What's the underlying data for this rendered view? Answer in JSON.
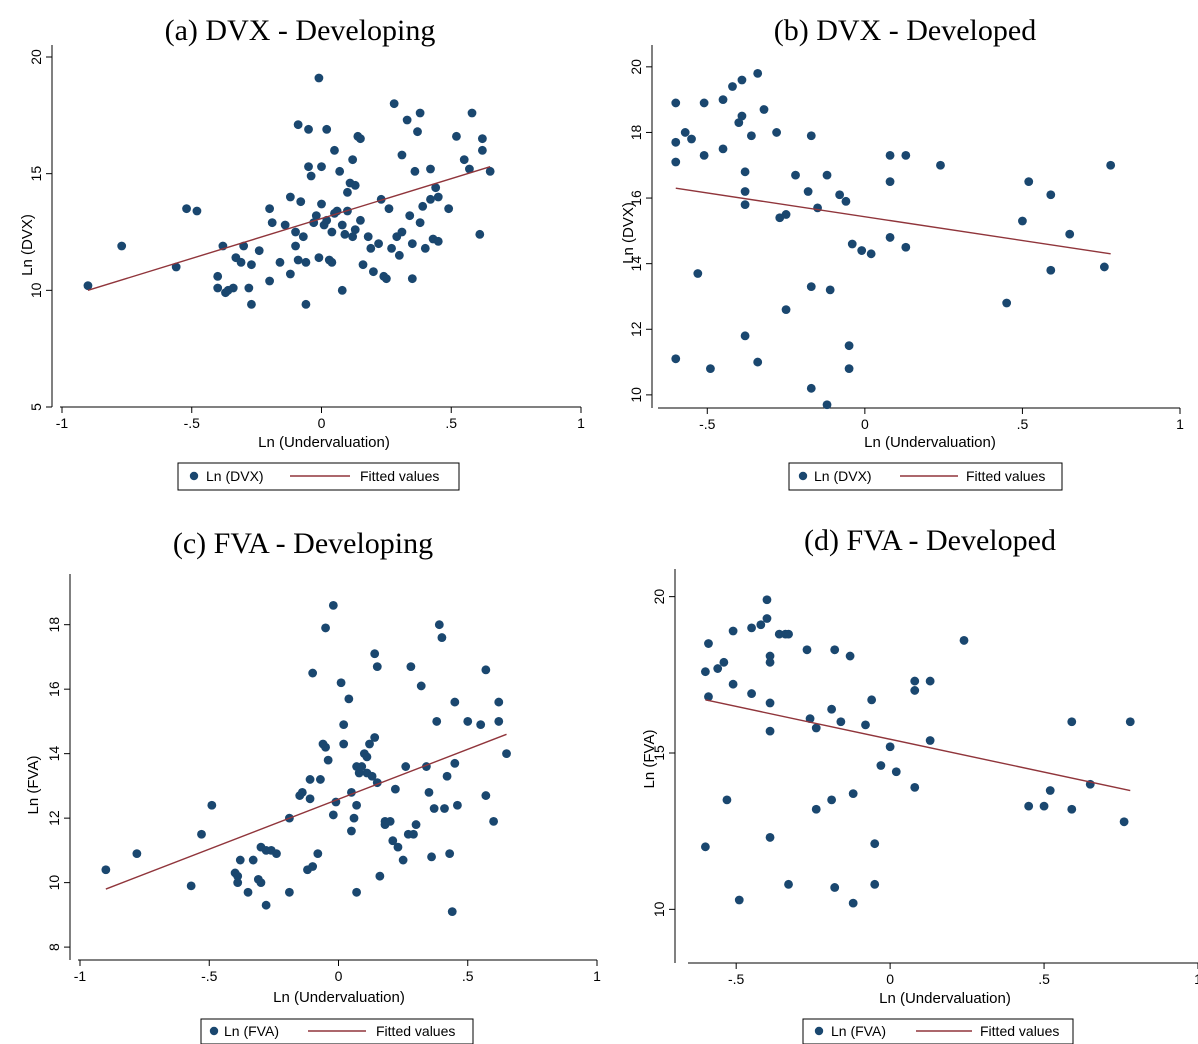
{
  "colors": {
    "marker": "#1a476f",
    "fit": "#90353b",
    "axis": "#000000"
  },
  "chart_data": [
    {
      "type": "scatter",
      "title": "(a) DVX - Developing",
      "xlabel": "Ln (Undervaluation)",
      "ylabel": "Ln (DVX)",
      "xticks": [
        "-1",
        "-.5",
        "0",
        ".5",
        "1"
      ],
      "yticks": [
        "5",
        "10",
        "15",
        "20"
      ],
      "xlim": [
        -1,
        1
      ],
      "ylim": [
        5,
        20
      ],
      "legend": [
        "Ln (DVX)",
        "Fitted values"
      ],
      "fit": [
        [
          -0.9,
          10.0
        ],
        [
          0.65,
          15.3
        ]
      ],
      "points": [
        [
          -0.9,
          10.2
        ],
        [
          -0.77,
          11.9
        ],
        [
          -0.56,
          11.0
        ],
        [
          -0.52,
          13.5
        ],
        [
          -0.48,
          13.4
        ],
        [
          -0.4,
          10.6
        ],
        [
          -0.4,
          10.1
        ],
        [
          -0.38,
          11.9
        ],
        [
          -0.37,
          9.9
        ],
        [
          -0.36,
          10.0
        ],
        [
          -0.34,
          10.1
        ],
        [
          -0.33,
          11.4
        ],
        [
          -0.31,
          11.2
        ],
        [
          -0.3,
          11.9
        ],
        [
          -0.28,
          10.1
        ],
        [
          -0.27,
          11.1
        ],
        [
          -0.27,
          9.4
        ],
        [
          -0.24,
          11.7
        ],
        [
          -0.2,
          10.4
        ],
        [
          -0.2,
          13.5
        ],
        [
          -0.19,
          12.9
        ],
        [
          -0.16,
          11.2
        ],
        [
          -0.14,
          12.8
        ],
        [
          -0.12,
          10.7
        ],
        [
          -0.12,
          14.0
        ],
        [
          -0.1,
          11.9
        ],
        [
          -0.1,
          12.5
        ],
        [
          -0.09,
          11.3
        ],
        [
          -0.09,
          17.1
        ],
        [
          -0.08,
          13.8
        ],
        [
          -0.07,
          12.3
        ],
        [
          -0.06,
          11.2
        ],
        [
          -0.06,
          9.4
        ],
        [
          -0.05,
          16.9
        ],
        [
          -0.05,
          15.3
        ],
        [
          -0.04,
          14.9
        ],
        [
          -0.03,
          12.9
        ],
        [
          -0.02,
          13.2
        ],
        [
          -0.01,
          19.1
        ],
        [
          -0.01,
          11.4
        ],
        [
          0.0,
          15.3
        ],
        [
          0.0,
          13.7
        ],
        [
          0.01,
          12.8
        ],
        [
          0.02,
          13.0
        ],
        [
          0.02,
          16.9
        ],
        [
          0.03,
          11.3
        ],
        [
          0.04,
          11.2
        ],
        [
          0.04,
          12.5
        ],
        [
          0.05,
          16.0
        ],
        [
          0.05,
          13.3
        ],
        [
          0.06,
          13.4
        ],
        [
          0.07,
          15.1
        ],
        [
          0.08,
          12.8
        ],
        [
          0.08,
          10.0
        ],
        [
          0.09,
          12.4
        ],
        [
          0.1,
          14.2
        ],
        [
          0.1,
          13.4
        ],
        [
          0.11,
          14.6
        ],
        [
          0.12,
          12.3
        ],
        [
          0.12,
          15.6
        ],
        [
          0.13,
          12.6
        ],
        [
          0.13,
          14.5
        ],
        [
          0.14,
          16.6
        ],
        [
          0.15,
          16.5
        ],
        [
          0.15,
          13.0
        ],
        [
          0.16,
          11.1
        ],
        [
          0.18,
          12.3
        ],
        [
          0.19,
          11.8
        ],
        [
          0.2,
          10.8
        ],
        [
          0.22,
          12.0
        ],
        [
          0.23,
          13.9
        ],
        [
          0.24,
          10.6
        ],
        [
          0.25,
          10.5
        ],
        [
          0.26,
          13.5
        ],
        [
          0.27,
          11.8
        ],
        [
          0.28,
          18.0
        ],
        [
          0.29,
          12.3
        ],
        [
          0.3,
          11.5
        ],
        [
          0.31,
          12.5
        ],
        [
          0.31,
          15.8
        ],
        [
          0.33,
          17.3
        ],
        [
          0.34,
          13.2
        ],
        [
          0.35,
          10.5
        ],
        [
          0.35,
          12.0
        ],
        [
          0.36,
          15.1
        ],
        [
          0.37,
          16.8
        ],
        [
          0.38,
          17.6
        ],
        [
          0.38,
          12.9
        ],
        [
          0.39,
          13.6
        ],
        [
          0.4,
          11.8
        ],
        [
          0.42,
          13.9
        ],
        [
          0.42,
          15.2
        ],
        [
          0.43,
          12.2
        ],
        [
          0.44,
          14.4
        ],
        [
          0.45,
          14.0
        ],
        [
          0.45,
          12.1
        ],
        [
          0.49,
          13.5
        ],
        [
          0.52,
          16.6
        ],
        [
          0.55,
          15.6
        ],
        [
          0.57,
          15.2
        ],
        [
          0.58,
          17.6
        ],
        [
          0.61,
          12.4
        ],
        [
          0.62,
          16.5
        ],
        [
          0.62,
          16.0
        ],
        [
          0.65,
          15.1
        ]
      ]
    },
    {
      "type": "scatter",
      "title": "(b) DVX - Developed",
      "xlabel": "Ln (Undervaluation)",
      "ylabel": "Ln (DVX)",
      "xticks": [
        "-.5",
        "0",
        ".5",
        "1"
      ],
      "yticks": [
        "10",
        "12",
        "14",
        "16",
        "18",
        "20"
      ],
      "xlim": [
        -0.65,
        1
      ],
      "ylim": [
        9.6,
        20.3
      ],
      "legend": [
        "Ln (DVX)",
        "Fitted values"
      ],
      "fit": [
        [
          -0.6,
          16.3
        ],
        [
          0.78,
          14.3
        ]
      ],
      "points": [
        [
          -0.6,
          17.1
        ],
        [
          -0.6,
          18.9
        ],
        [
          -0.6,
          17.7
        ],
        [
          -0.6,
          11.1
        ],
        [
          -0.57,
          18.0
        ],
        [
          -0.55,
          17.8
        ],
        [
          -0.53,
          13.7
        ],
        [
          -0.51,
          17.3
        ],
        [
          -0.51,
          18.9
        ],
        [
          -0.49,
          10.8
        ],
        [
          -0.45,
          19.0
        ],
        [
          -0.45,
          17.5
        ],
        [
          -0.42,
          19.4
        ],
        [
          -0.4,
          18.3
        ],
        [
          -0.39,
          19.6
        ],
        [
          -0.39,
          18.5
        ],
        [
          -0.38,
          16.8
        ],
        [
          -0.38,
          16.2
        ],
        [
          -0.38,
          15.8
        ],
        [
          -0.38,
          11.8
        ],
        [
          -0.36,
          17.9
        ],
        [
          -0.34,
          19.8
        ],
        [
          -0.34,
          11.0
        ],
        [
          -0.32,
          18.7
        ],
        [
          -0.28,
          18.0
        ],
        [
          -0.27,
          15.4
        ],
        [
          -0.25,
          15.5
        ],
        [
          -0.25,
          12.6
        ],
        [
          -0.22,
          16.7
        ],
        [
          -0.18,
          16.2
        ],
        [
          -0.17,
          17.9
        ],
        [
          -0.17,
          13.3
        ],
        [
          -0.17,
          10.2
        ],
        [
          -0.15,
          15.7
        ],
        [
          -0.12,
          16.7
        ],
        [
          -0.12,
          9.7
        ],
        [
          -0.11,
          13.2
        ],
        [
          -0.08,
          16.1
        ],
        [
          -0.06,
          15.9
        ],
        [
          -0.05,
          11.5
        ],
        [
          -0.05,
          10.8
        ],
        [
          -0.04,
          14.6
        ],
        [
          -0.01,
          14.4
        ],
        [
          0.02,
          14.3
        ],
        [
          0.08,
          17.3
        ],
        [
          0.08,
          16.5
        ],
        [
          0.08,
          14.8
        ],
        [
          0.13,
          17.3
        ],
        [
          0.13,
          14.5
        ],
        [
          0.24,
          17.0
        ],
        [
          0.45,
          12.8
        ],
        [
          0.5,
          15.3
        ],
        [
          0.52,
          16.5
        ],
        [
          0.59,
          16.1
        ],
        [
          0.59,
          13.8
        ],
        [
          0.65,
          14.9
        ],
        [
          0.76,
          13.9
        ],
        [
          0.78,
          17.0
        ]
      ]
    },
    {
      "type": "scatter",
      "title": "(c) FVA - Developing",
      "xlabel": "Ln (Undervaluation)",
      "ylabel": "Ln (FVA)",
      "xticks": [
        "-1",
        "-.5",
        "0",
        ".5",
        "1"
      ],
      "yticks": [
        "8",
        "10",
        "12",
        "14",
        "16",
        "18"
      ],
      "xlim": [
        -1,
        1
      ],
      "ylim": [
        7.6,
        19.2
      ],
      "legend": [
        "Ln (FVA)",
        "Fitted values"
      ],
      "fit": [
        [
          -0.9,
          9.8
        ],
        [
          0.65,
          14.6
        ]
      ],
      "points": [
        [
          -0.9,
          10.4
        ],
        [
          -0.78,
          10.9
        ],
        [
          -0.57,
          9.9
        ],
        [
          -0.53,
          11.5
        ],
        [
          -0.49,
          12.4
        ],
        [
          -0.4,
          10.3
        ],
        [
          -0.39,
          10.2
        ],
        [
          -0.39,
          10.0
        ],
        [
          -0.38,
          10.7
        ],
        [
          -0.35,
          9.7
        ],
        [
          -0.33,
          10.7
        ],
        [
          -0.31,
          10.1
        ],
        [
          -0.3,
          11.1
        ],
        [
          -0.3,
          10.0
        ],
        [
          -0.28,
          9.3
        ],
        [
          -0.28,
          11.0
        ],
        [
          -0.26,
          11.0
        ],
        [
          -0.24,
          10.9
        ],
        [
          -0.19,
          9.7
        ],
        [
          -0.19,
          12.0
        ],
        [
          -0.15,
          12.7
        ],
        [
          -0.14,
          12.8
        ],
        [
          -0.12,
          10.4
        ],
        [
          -0.11,
          12.6
        ],
        [
          -0.11,
          13.2
        ],
        [
          -0.1,
          10.5
        ],
        [
          -0.1,
          16.5
        ],
        [
          -0.08,
          10.9
        ],
        [
          -0.07,
          13.2
        ],
        [
          -0.06,
          14.3
        ],
        [
          -0.05,
          14.2
        ],
        [
          -0.05,
          17.9
        ],
        [
          -0.04,
          13.8
        ],
        [
          -0.02,
          12.1
        ],
        [
          -0.02,
          18.6
        ],
        [
          -0.01,
          12.5
        ],
        [
          0.01,
          16.2
        ],
        [
          0.02,
          14.3
        ],
        [
          0.02,
          14.9
        ],
        [
          0.04,
          15.7
        ],
        [
          0.05,
          12.8
        ],
        [
          0.05,
          11.6
        ],
        [
          0.06,
          12.0
        ],
        [
          0.07,
          13.6
        ],
        [
          0.07,
          12.4
        ],
        [
          0.07,
          9.7
        ],
        [
          0.08,
          13.4
        ],
        [
          0.09,
          13.6
        ],
        [
          0.1,
          14.0
        ],
        [
          0.11,
          13.4
        ],
        [
          0.11,
          13.9
        ],
        [
          0.12,
          14.3
        ],
        [
          0.13,
          13.3
        ],
        [
          0.14,
          14.5
        ],
        [
          0.14,
          17.1
        ],
        [
          0.15,
          16.7
        ],
        [
          0.15,
          13.1
        ],
        [
          0.16,
          10.2
        ],
        [
          0.18,
          11.9
        ],
        [
          0.18,
          11.8
        ],
        [
          0.2,
          11.9
        ],
        [
          0.21,
          11.3
        ],
        [
          0.22,
          12.9
        ],
        [
          0.23,
          11.1
        ],
        [
          0.25,
          10.7
        ],
        [
          0.26,
          13.6
        ],
        [
          0.27,
          11.5
        ],
        [
          0.28,
          16.7
        ],
        [
          0.29,
          11.5
        ],
        [
          0.3,
          11.8
        ],
        [
          0.32,
          16.1
        ],
        [
          0.34,
          13.6
        ],
        [
          0.35,
          12.8
        ],
        [
          0.36,
          10.8
        ],
        [
          0.37,
          12.3
        ],
        [
          0.38,
          15.0
        ],
        [
          0.39,
          18.0
        ],
        [
          0.4,
          17.6
        ],
        [
          0.41,
          12.3
        ],
        [
          0.42,
          13.3
        ],
        [
          0.43,
          10.9
        ],
        [
          0.44,
          9.1
        ],
        [
          0.45,
          15.6
        ],
        [
          0.45,
          13.7
        ],
        [
          0.46,
          12.4
        ],
        [
          0.5,
          15.0
        ],
        [
          0.55,
          14.9
        ],
        [
          0.57,
          16.6
        ],
        [
          0.57,
          12.7
        ],
        [
          0.6,
          11.9
        ],
        [
          0.62,
          15.6
        ],
        [
          0.62,
          15.0
        ],
        [
          0.65,
          14.0
        ]
      ]
    },
    {
      "type": "scatter",
      "title": "(d) FVA - Developed",
      "xlabel": "Ln (Undervaluation)",
      "ylabel": "Ln (FVA)",
      "xticks": [
        "-.5",
        "0",
        ".5",
        "1"
      ],
      "yticks": [
        "10",
        "15",
        "20"
      ],
      "xlim": [
        -0.65,
        1
      ],
      "ylim": [
        8.7,
        20.5
      ],
      "legend": [
        "Ln (FVA)",
        "Fitted values"
      ],
      "fit": [
        [
          -0.6,
          16.7
        ],
        [
          0.78,
          13.8
        ]
      ],
      "points": [
        [
          -0.6,
          17.6
        ],
        [
          -0.6,
          12.0
        ],
        [
          -0.59,
          18.5
        ],
        [
          -0.59,
          16.8
        ],
        [
          -0.56,
          17.7
        ],
        [
          -0.54,
          17.9
        ],
        [
          -0.53,
          13.5
        ],
        [
          -0.51,
          18.9
        ],
        [
          -0.51,
          17.2
        ],
        [
          -0.49,
          10.3
        ],
        [
          -0.45,
          19.0
        ],
        [
          -0.45,
          16.9
        ],
        [
          -0.42,
          19.1
        ],
        [
          -0.4,
          19.9
        ],
        [
          -0.4,
          19.3
        ],
        [
          -0.39,
          18.1
        ],
        [
          -0.39,
          17.9
        ],
        [
          -0.39,
          16.6
        ],
        [
          -0.39,
          15.7
        ],
        [
          -0.39,
          12.3
        ],
        [
          -0.36,
          18.8
        ],
        [
          -0.34,
          18.8
        ],
        [
          -0.33,
          18.8
        ],
        [
          -0.33,
          10.8
        ],
        [
          -0.27,
          18.3
        ],
        [
          -0.26,
          16.1
        ],
        [
          -0.24,
          15.8
        ],
        [
          -0.24,
          13.2
        ],
        [
          -0.19,
          16.4
        ],
        [
          -0.19,
          13.5
        ],
        [
          -0.18,
          18.3
        ],
        [
          -0.18,
          10.7
        ],
        [
          -0.16,
          16.0
        ],
        [
          -0.13,
          18.1
        ],
        [
          -0.12,
          13.7
        ],
        [
          -0.12,
          10.2
        ],
        [
          -0.08,
          15.9
        ],
        [
          -0.06,
          16.7
        ],
        [
          -0.05,
          12.1
        ],
        [
          -0.05,
          10.8
        ],
        [
          -0.03,
          14.6
        ],
        [
          0.0,
          15.2
        ],
        [
          0.02,
          14.4
        ],
        [
          0.08,
          17.3
        ],
        [
          0.08,
          17.0
        ],
        [
          0.08,
          13.9
        ],
        [
          0.13,
          17.3
        ],
        [
          0.13,
          15.4
        ],
        [
          0.24,
          18.6
        ],
        [
          0.45,
          13.3
        ],
        [
          0.5,
          13.3
        ],
        [
          0.52,
          13.8
        ],
        [
          0.59,
          16.0
        ],
        [
          0.59,
          13.2
        ],
        [
          0.65,
          14.0
        ],
        [
          0.76,
          12.8
        ],
        [
          0.78,
          16.0
        ]
      ]
    }
  ]
}
